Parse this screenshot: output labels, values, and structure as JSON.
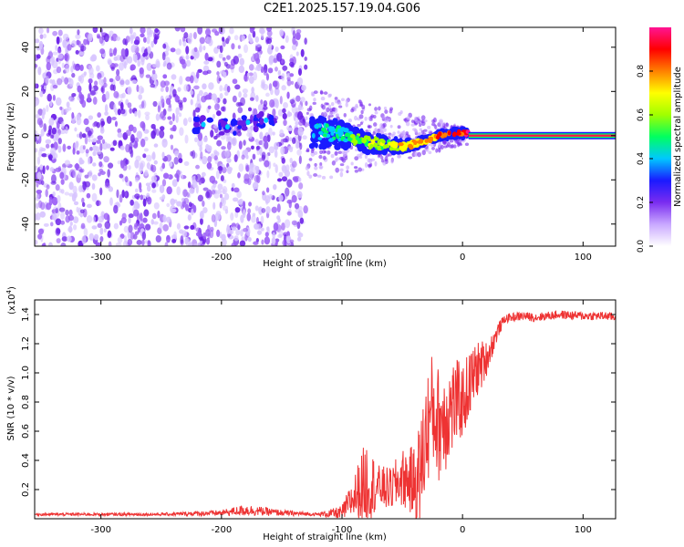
{
  "title": "C2E1.2025.157.19.04.G06",
  "chart_data": [
    {
      "type": "heatmap",
      "xlabel": "Height of straight line (km)",
      "ylabel": "Frequency (Hz)",
      "xlim": [
        -355,
        127
      ],
      "ylim": [
        -50,
        49
      ],
      "xticks": [
        -300,
        -200,
        -100,
        0,
        100
      ],
      "yticks": [
        -40,
        -20,
        0,
        20,
        40
      ],
      "colorbar": {
        "label": "Normalized spectral amplitude",
        "range": [
          0,
          1
        ],
        "ticks": [
          "0.0",
          "0.2",
          "0.4",
          "0.6",
          "0.8"
        ],
        "tick_values": [
          0.0,
          0.2,
          0.4,
          0.6,
          0.8
        ],
        "colors": [
          "#ffffff",
          "#c9a8ff",
          "#7a2cf0",
          "#1a1aff",
          "#00c8ff",
          "#00ff60",
          "#a0ff00",
          "#ffff00",
          "#ff8000",
          "#ff0000",
          "#ff1493"
        ]
      },
      "features": {
        "noise_region_x": [
          -355,
          -130
        ],
        "transition_track": [
          {
            "x": -125,
            "y": 2
          },
          {
            "x": -110,
            "y": 1
          },
          {
            "x": -95,
            "y": 0
          },
          {
            "x": -80,
            "y": -3
          },
          {
            "x": -65,
            "y": -4
          },
          {
            "x": -50,
            "y": -5
          },
          {
            "x": -35,
            "y": -3
          },
          {
            "x": -20,
            "y": 0
          },
          {
            "x": -5,
            "y": 1
          },
          {
            "x": 5,
            "y": 1
          }
        ],
        "carrier_line": {
          "x": [
            5,
            127
          ],
          "y": 0
        },
        "early_blobs": [
          {
            "x": -215,
            "y": 5
          },
          {
            "x": -195,
            "y": 4
          },
          {
            "x": -178,
            "y": 6
          },
          {
            "x": -163,
            "y": 7
          }
        ]
      }
    },
    {
      "type": "line",
      "xlabel": "Height of straight line (km)",
      "ylabel": "SNR (10 * v/v)",
      "y_multiplier": "(x10",
      "y_multiplier_exp": "4",
      "y_multiplier_close": ")",
      "xlim": [
        -355,
        127
      ],
      "ylim": [
        0,
        1.5
      ],
      "xticks": [
        -300,
        -200,
        -100,
        0,
        100
      ],
      "yticks": [
        "0.2",
        "0.4",
        "0.6",
        "0.8",
        "1.0",
        "1.2",
        "1.4"
      ],
      "ytick_values": [
        0.2,
        0.4,
        0.6,
        0.8,
        1.0,
        1.2,
        1.4
      ],
      "color": "#ee3333",
      "x": [
        -355,
        -300,
        -250,
        -200,
        -180,
        -150,
        -120,
        -100,
        -90,
        -80,
        -70,
        -60,
        -50,
        -40,
        -35,
        -30,
        -25,
        -20,
        -15,
        -10,
        -5,
        0,
        5,
        10,
        15,
        20,
        25,
        30,
        35,
        40,
        50,
        60,
        80,
        100,
        120,
        127
      ],
      "values": [
        0.03,
        0.03,
        0.03,
        0.04,
        0.06,
        0.04,
        0.03,
        0.04,
        0.15,
        0.25,
        0.22,
        0.2,
        0.28,
        0.25,
        0.3,
        0.6,
        0.75,
        0.65,
        0.7,
        0.75,
        0.8,
        0.8,
        0.9,
        1.0,
        1.05,
        1.1,
        1.2,
        1.3,
        1.37,
        1.38,
        1.39,
        1.38,
        1.4,
        1.39,
        1.39,
        1.38
      ],
      "noise_amplitude": [
        0.01,
        0.01,
        0.01,
        0.02,
        0.04,
        0.02,
        0.01,
        0.05,
        0.15,
        0.3,
        0.15,
        0.15,
        0.2,
        0.25,
        0.4,
        0.4,
        0.4,
        0.4,
        0.4,
        0.35,
        0.3,
        0.25,
        0.25,
        0.2,
        0.18,
        0.12,
        0.08,
        0.05,
        0.03,
        0.03,
        0.03,
        0.03,
        0.03,
        0.03,
        0.03,
        0.03
      ]
    }
  ]
}
